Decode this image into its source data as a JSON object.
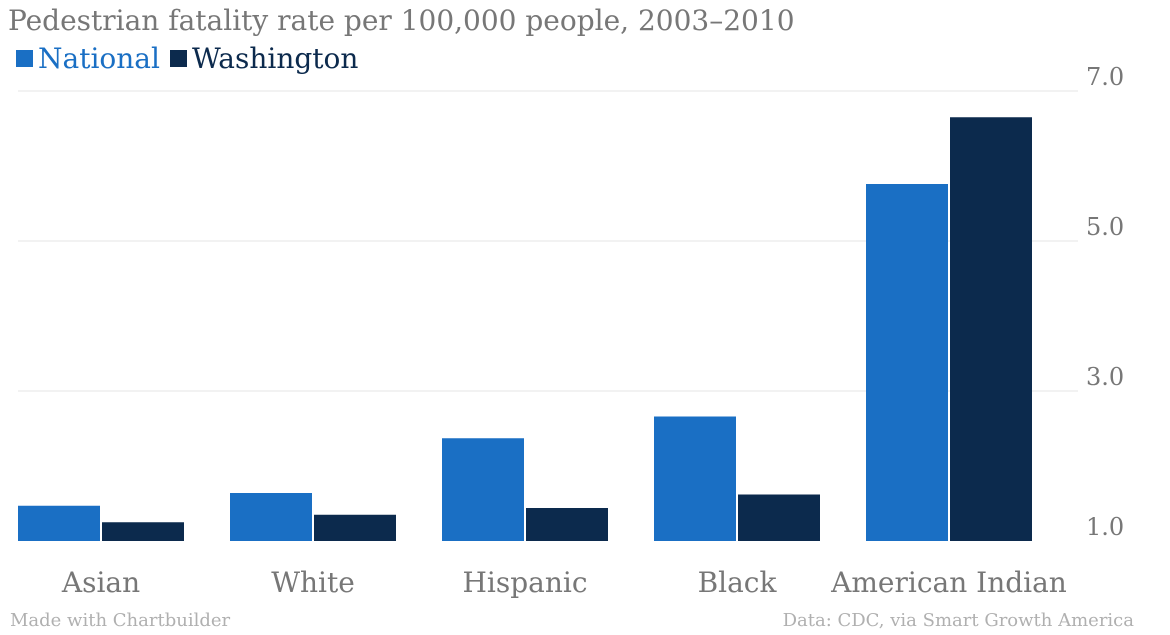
{
  "footer": {
    "made_with": "Made with Chartbuilder",
    "source": "Data: CDC, via Smart Growth America"
  },
  "colors": {
    "national": "#1a6fc4",
    "washington": "#0c2a4d",
    "grid": "#e6e6e6",
    "text": "#777777"
  },
  "chart_data": {
    "type": "bar",
    "title": "Pedestrian fatality rate per 100,000 people, 2003–2010",
    "xlabel": "",
    "ylabel": "",
    "categories": [
      "Asian",
      "White",
      "Hispanic",
      "Black",
      "American Indian"
    ],
    "series": [
      {
        "name": "National",
        "values": [
          1.47,
          1.64,
          2.37,
          2.66,
          5.76
        ]
      },
      {
        "name": "Washington",
        "values": [
          1.25,
          1.35,
          1.44,
          1.62,
          6.65
        ]
      }
    ],
    "ylim": [
      1.0,
      7.0
    ],
    "yticks": [
      "1.0",
      "3.0",
      "5.0",
      "7.0"
    ],
    "grid": true,
    "legend_position": "top-left"
  }
}
